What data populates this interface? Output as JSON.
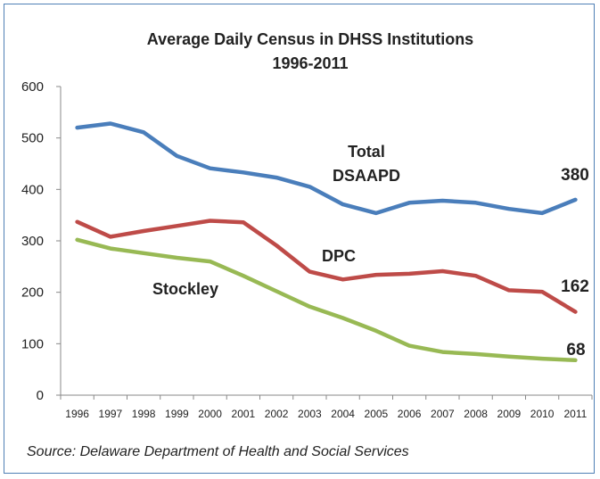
{
  "chart_data": {
    "type": "line",
    "title": "Average Daily Census in DHSS Institutions",
    "subtitle": "1996-2011",
    "source": "Source: Delaware Department of Health and Social Services",
    "x": [
      "1996",
      "1997",
      "1998",
      "1999",
      "2000",
      "2001",
      "2002",
      "2003",
      "2004",
      "2005",
      "2006",
      "2007",
      "2008",
      "2009",
      "2010",
      "2011"
    ],
    "ylim": [
      0,
      600
    ],
    "yticks": [
      0,
      100,
      200,
      300,
      400,
      500,
      600
    ],
    "grid": false,
    "legend": "none",
    "series": [
      {
        "name": "Total DSAAPD",
        "label_lines": [
          "Total",
          "DSAAPD"
        ],
        "color": "#4a7ebb",
        "values": [
          520,
          528,
          511,
          465,
          441,
          433,
          423,
          405,
          371,
          354,
          374,
          378,
          374,
          362,
          354,
          380
        ],
        "end_label": "380"
      },
      {
        "name": "DPC",
        "label_lines": [
          "DPC"
        ],
        "color": "#be4b48",
        "values": [
          337,
          308,
          319,
          329,
          339,
          336,
          291,
          240,
          225,
          234,
          236,
          241,
          232,
          204,
          201,
          162
        ],
        "end_label": "162"
      },
      {
        "name": "Stockley",
        "label_lines": [
          "Stockley"
        ],
        "color": "#98b954",
        "values": [
          302,
          285,
          276,
          267,
          260,
          232,
          202,
          172,
          150,
          125,
          96,
          84,
          80,
          75,
          71,
          68
        ],
        "end_label": "68"
      }
    ]
  }
}
